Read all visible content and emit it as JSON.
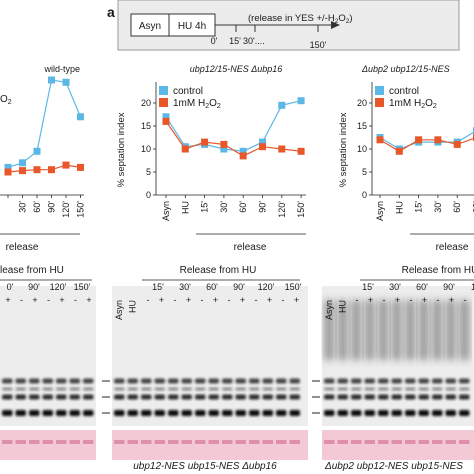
{
  "panel_label": "a",
  "scheme": {
    "asyn": "Asyn",
    "hu": "HU 4h",
    "release": "(release in YES +/-H",
    "release_sub": "2",
    "release_o": "O",
    "release_end": "2",
    "release_close": ")",
    "t0": "0'",
    "t15": "15'",
    "t30": "30'....",
    "t150": "150'"
  },
  "legend": {
    "control": "control",
    "h2o2_prefix": "1mM H",
    "h2o2_sub1": "2",
    "h2o2_mid": "O",
    "h2o2_sub2": "2"
  },
  "colors": {
    "control": "#5bb8e6",
    "h2o2": "#e8572a"
  },
  "chart_data": [
    {
      "type": "line",
      "title": "wild-type",
      "ylabel": "",
      "xlabel": "release",
      "categories": [
        "",
        "30'",
        "60'",
        "90'",
        "120'",
        "150'"
      ],
      "series": [
        {
          "name": "control",
          "values": [
            6,
            7,
            9.5,
            25,
            24.5,
            17
          ]
        },
        {
          "name": "1mM H2O2",
          "values": [
            5,
            5.3,
            5.5,
            5.5,
            6.5,
            6
          ]
        }
      ],
      "y_fragment": "O",
      "y_fragment_sub": "2"
    },
    {
      "type": "line",
      "title": "ubp12/15-NES Δubp16",
      "ylabel": "% septation index",
      "xlabel": "release",
      "categories": [
        "Asyn",
        "HU",
        "15'",
        "30'",
        "60'",
        "90'",
        "120'",
        "150'"
      ],
      "ylim": [
        0,
        25
      ],
      "yticks": [
        0,
        5,
        10,
        15,
        20
      ],
      "series": [
        {
          "name": "control",
          "values": [
            17,
            10.5,
            11,
            10,
            9.5,
            11.5,
            19.5,
            20.5
          ]
        },
        {
          "name": "1mM H2O2",
          "values": [
            16,
            10,
            11.5,
            11,
            8.5,
            10.5,
            10,
            9.5
          ]
        }
      ]
    },
    {
      "type": "line",
      "title": "Δubp2 ubp12/15-NES",
      "ylabel": "% septation index",
      "xlabel": "release",
      "categories": [
        "Asyn",
        "HU",
        "15'",
        "30'",
        "60'",
        "90'"
      ],
      "ylim": [
        0,
        25
      ],
      "yticks": [
        0,
        5,
        10,
        15,
        20
      ],
      "series": [
        {
          "name": "control",
          "values": [
            12.5,
            10,
            11.5,
            11.5,
            11.5,
            14
          ]
        },
        {
          "name": "1mM H2O2",
          "values": [
            12,
            9.5,
            12,
            12,
            11,
            12.5
          ]
        }
      ]
    }
  ],
  "gels": {
    "left": {
      "header": "lease from HU",
      "times": [
        "0'",
        "90'",
        "120'",
        "150'"
      ],
      "signs": [
        "+",
        "-",
        "+",
        "-",
        "+",
        "-",
        "+"
      ]
    },
    "middle": {
      "header": "Release from HU",
      "pre": [
        "Asyn",
        "HU"
      ],
      "times": [
        "15'",
        "30'",
        "60'",
        "90'",
        "120'",
        "150'"
      ],
      "signs": [
        "-",
        "+",
        "-",
        "+",
        "-",
        "+",
        "-",
        "+",
        "-",
        "+",
        "-",
        "+"
      ],
      "caption": "ubp12-NES ubp15-NES Δubp16"
    },
    "right": {
      "header": "Release from HU",
      "pre": [
        "Asyn",
        "HU"
      ],
      "times": [
        "15'",
        "30'",
        "60'",
        "90'",
        "12"
      ],
      "signs": [
        "-",
        "+",
        "-",
        "+",
        "-",
        "+",
        "-",
        "+",
        "-"
      ],
      "caption": "Δubp2 ubp12-NES ubp15-NES"
    }
  }
}
